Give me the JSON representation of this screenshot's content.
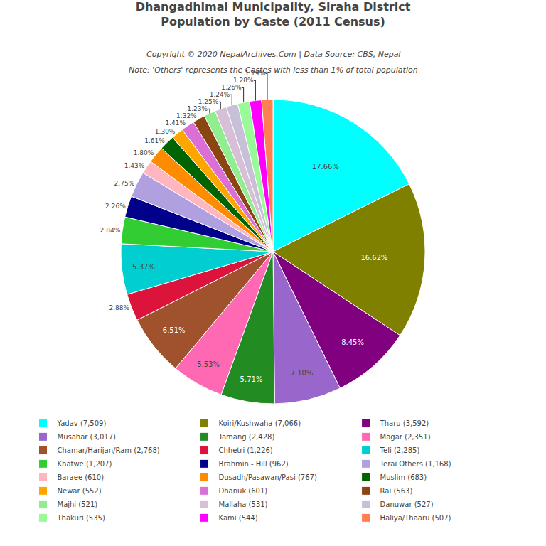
{
  "chart_data": {
    "type": "pie",
    "title": "Dhangadhimai Municipality, Siraha District\nPopulation by Caste (2011 Census)",
    "annotations": [
      "Copyright © 2020 NepalArchives.Com | Data Source: CBS, Nepal",
      "Note: 'Others' represents the Castes with less than 1% of total population"
    ],
    "categories": [
      "Yadav (7,509)",
      "Koiri/Kushwaha (7,066)",
      "Tharu (3,592)",
      "Musahar (3,017)",
      "Tamang (2,428)",
      "Magar (2,351)",
      "Chamar/Harijan/Ram (2,768)",
      "Chhetri (1,226)",
      "Teli (2,285)",
      "Khatwe (1,207)",
      "Brahmin - Hill (962)",
      "Terai Others (1,168)",
      "Baraee (610)",
      "Dusadh/Pasawan/Pasi (767)",
      "Muslim (683)",
      "Newar (552)",
      "Dhanuk (601)",
      "Rai (563)",
      "Majhi (521)",
      "Mallaha (531)",
      "Danuwar (527)",
      "Thakuri (535)",
      "Kami (544)",
      "Haliya/Thaaru (507)"
    ],
    "values": [
      17.66,
      16.62,
      8.45,
      7.1,
      5.71,
      5.53,
      6.51,
      2.88,
      5.37,
      2.84,
      2.26,
      2.75,
      1.43,
      1.8,
      1.61,
      1.3,
      1.41,
      1.32,
      1.23,
      1.25,
      1.24,
      1.26,
      1.28,
      1.19
    ],
    "value_labels": [
      "17.66%",
      "16.62%",
      "8.45%",
      "7.10%",
      "5.71%",
      "5.53%",
      "6.51%",
      "2.88%",
      "5.37%",
      "2.84%",
      "2.26%",
      "2.75%",
      "1.43%",
      "1.80%",
      "1.61%",
      "1.30%",
      "1.41%",
      "1.32%",
      "1.23%",
      "1.25%",
      "1.24%",
      "1.26%",
      "1.28%",
      "1.19%"
    ],
    "colors": [
      "#00FFFF",
      "#808000",
      "#800080",
      "#9966CC",
      "#228B22",
      "#FF69B4",
      "#A0522D",
      "#DC143C",
      "#00CED1",
      "#32CD32",
      "#00008B",
      "#B0A0E0",
      "#FFB6C1",
      "#FF8C00",
      "#006400",
      "#FFA500",
      "#DA70D6",
      "#8B4513",
      "#90EE90",
      "#D8BFD8",
      "#C8C0D8",
      "#98FB98",
      "#FF00FF",
      "#FF7F50"
    ],
    "data_labels": true,
    "legend": "bottom"
  }
}
